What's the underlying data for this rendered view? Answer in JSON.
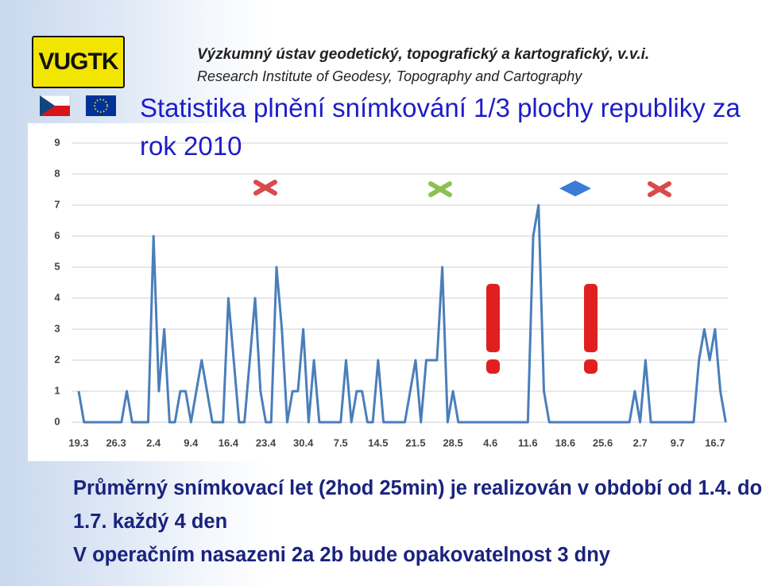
{
  "header": {
    "logo": "VUGTK",
    "institute_cz": "Výzkumný ústav geodetický, topografický a kartografický, v.v.i.",
    "institute_en": "Research Institute of Geodesy, Topography and Cartography"
  },
  "chart_data": {
    "type": "line",
    "title": "Statistika plnění snímkování 1/3 plochy republiky za rok 2010",
    "categories": [
      "19.3",
      null,
      null,
      null,
      null,
      null,
      null,
      "26.3",
      null,
      null,
      null,
      null,
      null,
      null,
      "2.4",
      null,
      null,
      null,
      null,
      null,
      null,
      "9.4",
      null,
      null,
      null,
      null,
      null,
      null,
      "16.4",
      null,
      null,
      null,
      null,
      null,
      null,
      "23.4",
      null,
      null,
      null,
      null,
      null,
      null,
      "30.4",
      null,
      null,
      null,
      null,
      null,
      null,
      "7.5",
      null,
      null,
      null,
      null,
      null,
      null,
      "14.5",
      null,
      null,
      null,
      null,
      null,
      null,
      "21.5",
      null,
      null,
      null,
      null,
      null,
      null,
      "28.5",
      null,
      null,
      null,
      null,
      null,
      null,
      "4.6",
      null,
      null,
      null,
      null,
      null,
      null,
      "11.6",
      null,
      null,
      null,
      null,
      null,
      null,
      "18.6",
      null,
      null,
      null,
      null,
      null,
      null,
      "25.6",
      null,
      null,
      null,
      null,
      null,
      null,
      "2.7",
      null,
      null,
      null,
      null,
      null,
      null,
      "9.7",
      null,
      null,
      null,
      null,
      null,
      null,
      "16.7",
      null,
      null
    ],
    "series": [
      {
        "color": "#4a7ebb",
        "values": [
          1,
          0,
          0,
          0,
          0,
          0,
          0,
          0,
          0,
          1,
          0,
          0,
          0,
          0,
          6,
          1,
          3,
          0,
          0,
          1,
          1,
          0,
          1,
          2,
          1,
          0,
          0,
          0,
          4,
          2,
          0,
          0,
          2,
          4,
          1,
          0,
          0,
          5,
          3,
          0,
          1,
          1,
          3,
          0,
          2,
          0,
          0,
          0,
          0,
          0,
          2,
          0,
          1,
          1,
          0,
          0,
          2,
          0,
          0,
          0,
          0,
          0,
          1,
          2,
          0,
          2,
          2,
          2,
          5,
          0,
          1,
          0,
          0,
          0,
          0,
          0,
          0,
          0,
          0,
          0,
          0,
          0,
          0,
          0,
          0,
          6,
          7,
          1,
          0,
          0,
          0,
          0,
          0,
          0,
          0,
          0,
          0,
          0,
          0,
          0,
          0,
          0,
          0,
          0,
          1,
          0,
          2,
          0,
          0,
          0,
          0,
          0,
          0,
          0,
          0,
          0,
          2,
          3,
          2,
          3,
          1,
          0
        ]
      }
    ],
    "ylim": [
      0,
      9
    ],
    "yticks": [
      0,
      1,
      2,
      3,
      4,
      5,
      6,
      7,
      8,
      9
    ],
    "grid": true
  },
  "notes": [
    "Průměrný snímkovací let (2hod 25min) je realizován v období od 1.4. do 1.7. každý 4 den",
    "V operačním nasazeni 2a 2b bude opakovatelnost 3 dny"
  ]
}
